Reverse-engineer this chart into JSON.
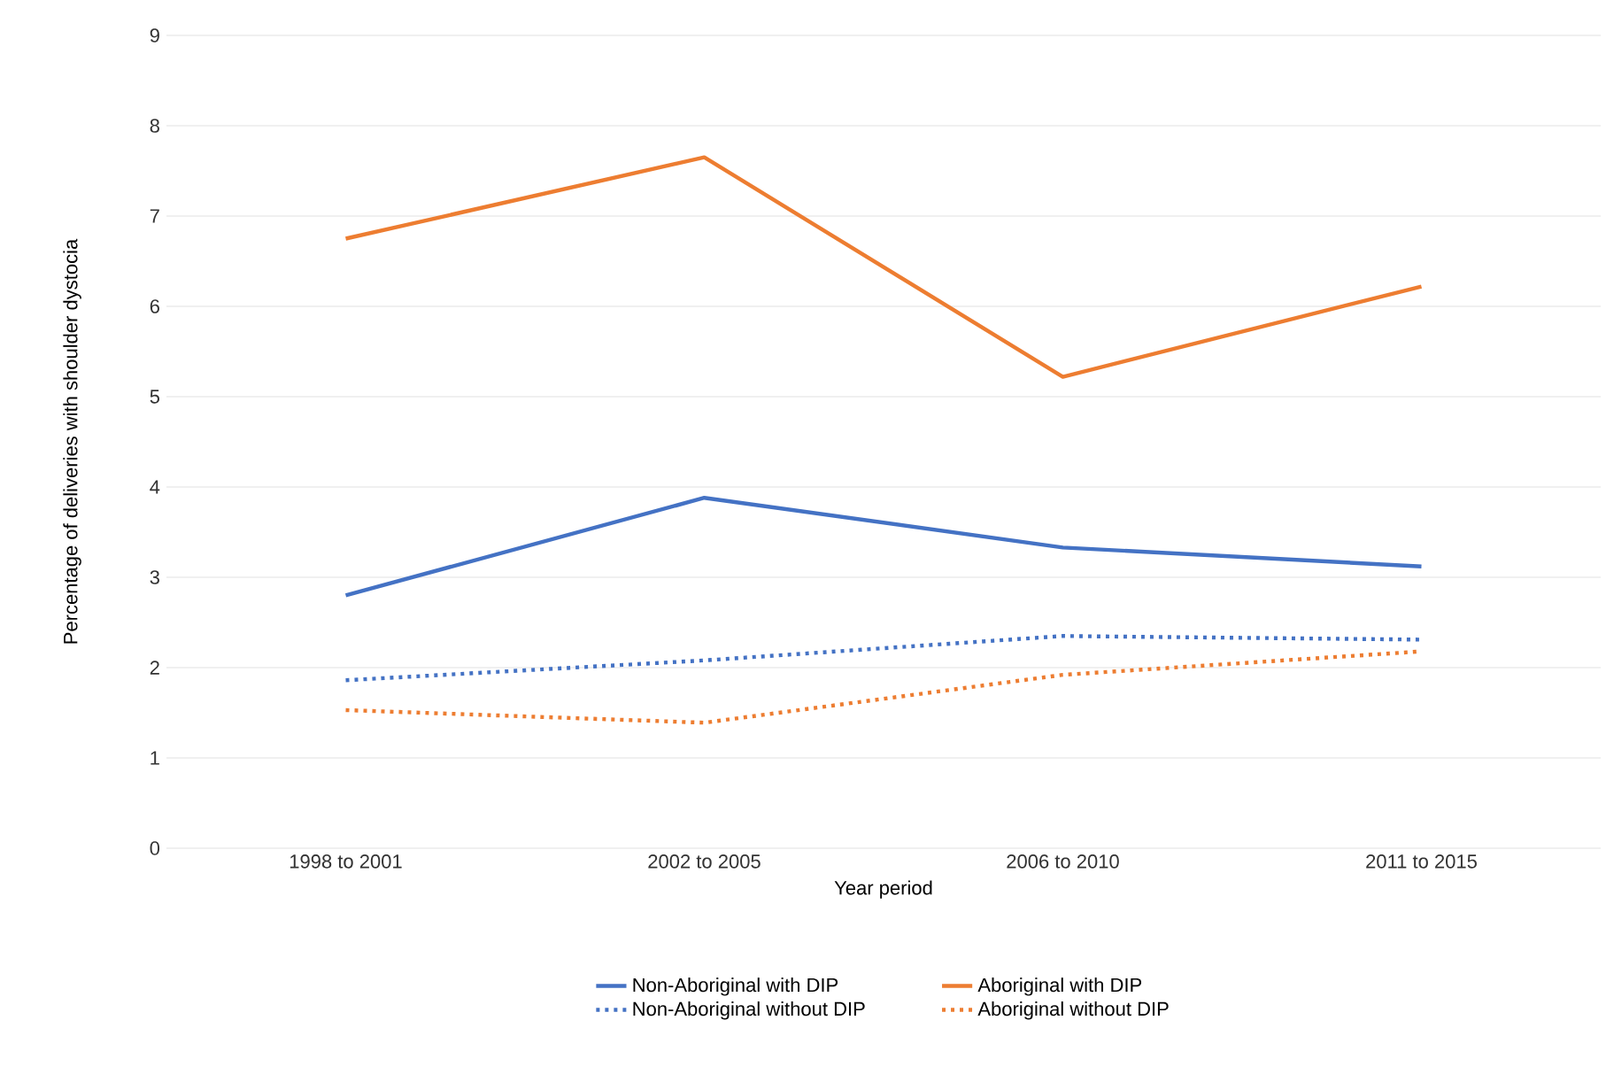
{
  "chart_data": {
    "type": "line",
    "xlabel": "Year period",
    "ylabel": "Percentage of deliveries with shoulder dystocia",
    "categories": [
      "1998 to 2001",
      "2002 to 2005",
      "2006 to 2010",
      "2011 to 2015"
    ],
    "series": [
      {
        "name": "Non-Aboriginal with DIP",
        "color": "#4472c4",
        "line_style": "solid",
        "values": [
          2.8,
          3.88,
          3.33,
          3.12
        ]
      },
      {
        "name": "Aboriginal with DIP",
        "color": "#ed7d31",
        "line_style": "solid",
        "values": [
          6.75,
          7.65,
          5.22,
          6.22
        ]
      },
      {
        "name": "Non-Aboriginal without DIP",
        "color": "#4472c4",
        "line_style": "dotted",
        "values": [
          1.86,
          2.08,
          2.35,
          2.31
        ]
      },
      {
        "name": "Aboriginal without DIP",
        "color": "#ed7d31",
        "line_style": "dotted",
        "values": [
          1.53,
          1.39,
          1.92,
          2.18
        ]
      }
    ],
    "ylim": [
      0,
      9
    ],
    "yticks": [
      0,
      1,
      2,
      3,
      4,
      5,
      6,
      7,
      8,
      9
    ],
    "grid": "y",
    "legend": "bottom",
    "marker": "none"
  }
}
